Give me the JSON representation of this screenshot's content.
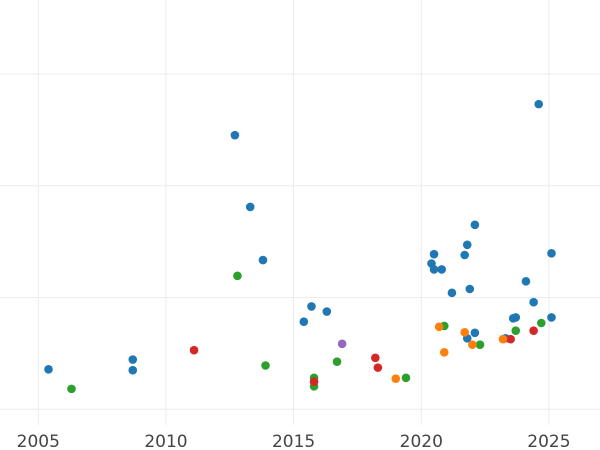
{
  "chart_data": {
    "type": "scatter",
    "title": "",
    "xlabel": "",
    "ylabel": "",
    "xlim": [
      2003.5,
      2027
    ],
    "ylim": [
      0,
      100
    ],
    "grid": true,
    "x_ticks": [
      2005,
      2010,
      2015,
      2020,
      2025
    ],
    "x_tick_labels": [
      "2005",
      "2010",
      "2015",
      "2020",
      "2025"
    ],
    "y_grid": [
      3.7,
      30.0,
      56.3,
      82.6
    ],
    "y_tick_labels_visible": false,
    "legend": false,
    "colors": {
      "blue": "#1f77b4",
      "green": "#2ca02c",
      "red": "#d62728",
      "orange": "#ff7f0e",
      "purple": "#9467bd"
    },
    "series": [
      {
        "color": "blue",
        "points": [
          [
            2005.4,
            13.1
          ],
          [
            2008.7,
            15.4
          ],
          [
            2008.7,
            12.9
          ],
          [
            2012.7,
            68.2
          ],
          [
            2013.3,
            51.3
          ],
          [
            2013.8,
            38.8
          ],
          [
            2015.4,
            24.3
          ],
          [
            2015.7,
            27.9
          ],
          [
            2016.3,
            26.7
          ],
          [
            2020.4,
            38.0
          ],
          [
            2020.5,
            40.2
          ],
          [
            2020.5,
            36.6
          ],
          [
            2020.8,
            36.6
          ],
          [
            2021.2,
            31.1
          ],
          [
            2021.7,
            40.0
          ],
          [
            2021.8,
            42.4
          ],
          [
            2021.9,
            32.0
          ],
          [
            2022.1,
            47.1
          ],
          [
            2022.1,
            21.7
          ],
          [
            2021.8,
            20.4
          ],
          [
            2023.3,
            20.4
          ],
          [
            2023.6,
            25.1
          ],
          [
            2023.7,
            25.3
          ],
          [
            2024.1,
            33.8
          ],
          [
            2024.4,
            28.9
          ],
          [
            2024.6,
            75.5
          ],
          [
            2025.1,
            40.4
          ],
          [
            2025.1,
            25.3
          ]
        ]
      },
      {
        "color": "green",
        "points": [
          [
            2006.3,
            8.5
          ],
          [
            2012.8,
            35.1
          ],
          [
            2013.9,
            14.0
          ],
          [
            2015.8,
            11.1
          ],
          [
            2015.8,
            9.1
          ],
          [
            2016.7,
            14.9
          ],
          [
            2019.4,
            11.1
          ],
          [
            2020.9,
            23.3
          ],
          [
            2022.3,
            18.9
          ],
          [
            2023.7,
            22.2
          ],
          [
            2024.7,
            24.0
          ]
        ]
      },
      {
        "color": "red",
        "points": [
          [
            2011.1,
            17.6
          ],
          [
            2015.8,
            10.2
          ],
          [
            2018.2,
            15.8
          ],
          [
            2018.3,
            13.5
          ],
          [
            2023.5,
            20.2
          ],
          [
            2024.4,
            22.2
          ]
        ]
      },
      {
        "color": "orange",
        "points": [
          [
            2019.0,
            10.9
          ],
          [
            2020.7,
            23.1
          ],
          [
            2020.9,
            17.1
          ],
          [
            2021.7,
            21.8
          ],
          [
            2022.0,
            18.9
          ],
          [
            2023.2,
            20.2
          ]
        ]
      },
      {
        "color": "purple",
        "points": [
          [
            2016.9,
            19.1
          ]
        ]
      }
    ]
  }
}
